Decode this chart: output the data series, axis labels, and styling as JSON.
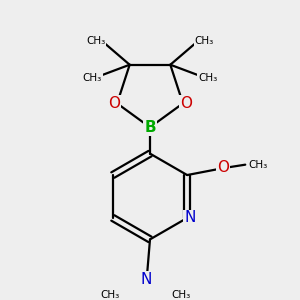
{
  "bg_color": "#eeeeee",
  "atom_colors": {
    "C": "#000000",
    "N": "#0000cc",
    "O": "#cc0000",
    "B": "#00aa00"
  },
  "bond_color": "#000000",
  "bond_width": 1.6,
  "xlim": [
    -1.6,
    1.8
  ],
  "ylim": [
    -2.1,
    1.9
  ]
}
